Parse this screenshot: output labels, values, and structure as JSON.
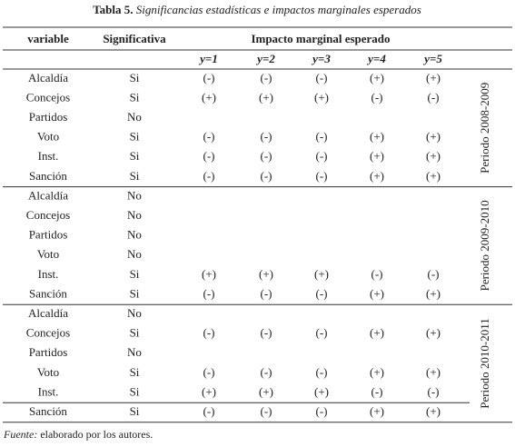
{
  "title": {
    "label": "Tabla 5.",
    "text": "Significancias estadísticas e impactos marginales esperados"
  },
  "table": {
    "header": [
      "variable",
      "Significativa",
      "Impacto marginal esperado"
    ],
    "subheader": [
      "y=1",
      "y=2",
      "y=3",
      "y=4",
      "y=5"
    ],
    "groups": [
      {
        "period": "Periodo 2008-2009",
        "rows": [
          [
            "Alcaldía",
            "Si",
            "(-)",
            "(-)",
            "(-)",
            "(+)",
            "(+)"
          ],
          [
            "Concejos",
            "Si",
            "(+)",
            "(+)",
            "(+)",
            "(-)",
            "(-)"
          ],
          [
            "Partidos",
            "No"
          ],
          [
            "Voto",
            "Si",
            "(-)",
            "(-)",
            "(-)",
            "(+)",
            "(+)"
          ],
          [
            "Inst.",
            "Si",
            "(-)",
            "(-)",
            "(-)",
            "(+)",
            "(+)"
          ],
          [
            "Sanción",
            "Si",
            "(-)",
            "(-)",
            "(-)",
            "(+)",
            "(+)"
          ]
        ]
      },
      {
        "period": "Periodo 2009-2010",
        "rows": [
          [
            "Alcaldía",
            "No"
          ],
          [
            "Concejos",
            "No"
          ],
          [
            "Partidos",
            "No"
          ],
          [
            "Voto",
            "No"
          ],
          [
            "Inst.",
            "Si",
            "(+)",
            "(+)",
            "(+)",
            "(-)",
            "(-)"
          ],
          [
            "Sanción",
            "Si",
            "(-)",
            "(-)",
            "(-)",
            "(+)",
            "(+)"
          ]
        ]
      },
      {
        "period": "Periodo 2010-2011",
        "rows": [
          [
            "Alcaldía",
            "No"
          ],
          [
            "Concejos",
            "Si",
            "(-)",
            "(-)",
            "(-)",
            "(+)",
            "(+)"
          ],
          [
            "Partidos",
            "No"
          ],
          [
            "Voto",
            "Si",
            "(-)",
            "(-)",
            "(-)",
            "(+)",
            "(+)"
          ],
          [
            "Inst.",
            "Si",
            "(+)",
            "(+)",
            "(+)",
            "(-)",
            "(-)"
          ],
          [
            "Sanción",
            "Si",
            "(-)",
            "(-)",
            "(-)",
            "(+)",
            "(+)"
          ]
        ]
      }
    ]
  },
  "footnote": {
    "label": "Fuente:",
    "text": "elaborado por los autores."
  }
}
